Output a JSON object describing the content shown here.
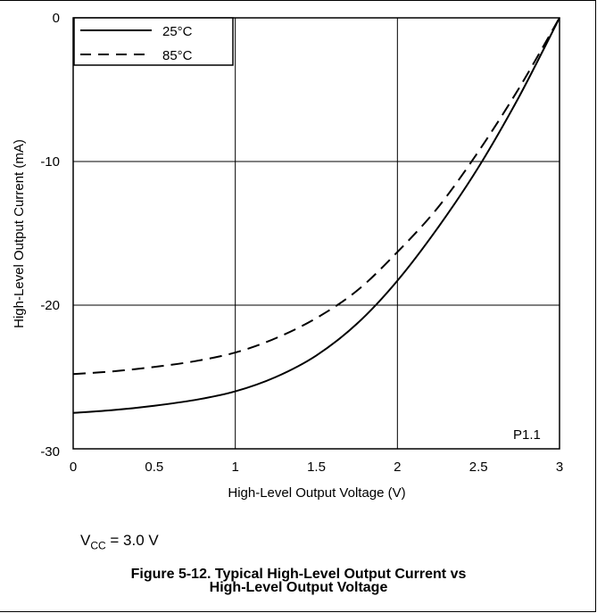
{
  "chart_data": {
    "type": "line",
    "xlabel": "High-Level Output Voltage (V)",
    "ylabel": "High-Level Output Current (mA)",
    "xlim": [
      0,
      3
    ],
    "ylim": [
      -30,
      0
    ],
    "xticks": [
      0,
      0.5,
      1,
      1.5,
      2,
      2.5,
      3
    ],
    "yticks": [
      0,
      -10,
      -20,
      -30
    ],
    "xtick_labels": [
      "0",
      "0.5",
      "1",
      "1.5",
      "2",
      "2.5",
      "3"
    ],
    "ytick_labels": [
      "0",
      "-10",
      "-20",
      "-30"
    ],
    "grid": true,
    "legend_position": "top-left",
    "annotation": "P1.1",
    "series": [
      {
        "name": "25°C",
        "style": "solid",
        "x": [
          0,
          0.25,
          0.5,
          0.75,
          1.0,
          1.25,
          1.5,
          1.75,
          2.0,
          2.25,
          2.5,
          2.75,
          3.0
        ],
        "y": [
          -27.5,
          -27.3,
          -27.0,
          -26.6,
          -26.0,
          -25.0,
          -23.5,
          -21.3,
          -18.3,
          -14.6,
          -10.4,
          -5.5,
          0
        ]
      },
      {
        "name": "85°C",
        "style": "dashed",
        "x": [
          0,
          0.25,
          0.5,
          0.75,
          1.0,
          1.25,
          1.5,
          1.75,
          2.0,
          2.25,
          2.5,
          2.75,
          3.0
        ],
        "y": [
          -24.8,
          -24.6,
          -24.3,
          -23.9,
          -23.3,
          -22.3,
          -20.9,
          -19.0,
          -16.3,
          -13.2,
          -9.3,
          -4.9,
          0
        ]
      }
    ]
  },
  "vcc_note": {
    "prefix": "V",
    "subscript": "CC",
    "suffix": " = 3.0 V"
  },
  "caption": {
    "line1": "Figure 5-12. Typical High-Level Output Current vs",
    "line2": "High-Level Output Voltage"
  }
}
